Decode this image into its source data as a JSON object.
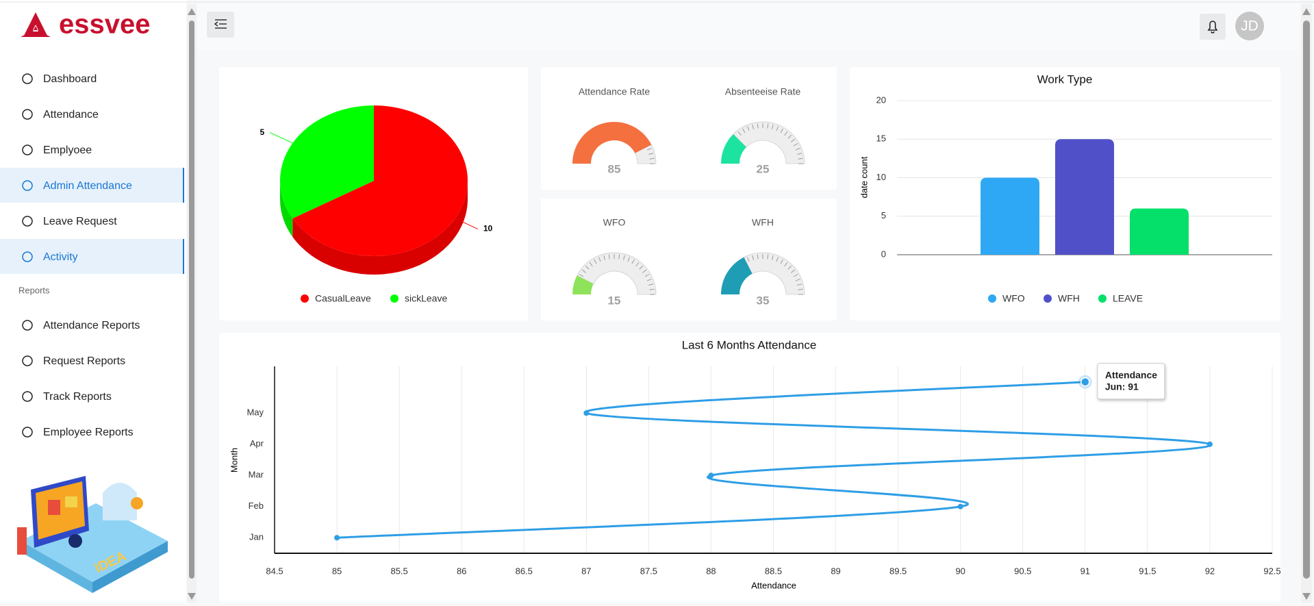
{
  "sidebar": {
    "logo": "essvee",
    "nav": [
      {
        "label": "Dashboard"
      },
      {
        "label": "Attendance"
      },
      {
        "label": "Emplyoee"
      },
      {
        "label": "Admin Attendance",
        "active": true
      },
      {
        "label": "Leave Request"
      },
      {
        "label": "Activity",
        "active": true
      }
    ],
    "section": "Reports",
    "reports": [
      {
        "label": "Attendance Reports"
      },
      {
        "label": "Request Reports"
      },
      {
        "label": "Track Reports"
      },
      {
        "label": "Employee Reports"
      }
    ]
  },
  "header": {
    "avatar": "JD"
  },
  "chart_data": [
    {
      "type": "pie",
      "categories": [
        "CasualLeave",
        "sickLeave"
      ],
      "values": [
        10,
        5
      ],
      "colors": [
        "#ff0000",
        "#00ff00"
      ],
      "legend": "bottom"
    },
    {
      "type": "gauge",
      "title": "Attendance Rate",
      "value": 85,
      "color": "#f4703f",
      "ylim": [
        0,
        100
      ]
    },
    {
      "type": "gauge",
      "title": "Absenteeise Rate",
      "value": 25,
      "color": "#1de3a0",
      "ylim": [
        0,
        100
      ]
    },
    {
      "type": "gauge",
      "title": "WFO",
      "value": 15,
      "color": "#8ee35a",
      "ylim": [
        0,
        100
      ]
    },
    {
      "type": "gauge",
      "title": "WFH",
      "value": 35,
      "color": "#1f9db5",
      "ylim": [
        0,
        100
      ]
    },
    {
      "type": "bar",
      "title": "Work Type",
      "y_label": "date count",
      "categories": [
        "WFO",
        "WFH",
        "LEAVE"
      ],
      "values": [
        10,
        15,
        6
      ],
      "colors": [
        "#2ea8f5",
        "#5050c8",
        "#05e06a"
      ],
      "ylim": [
        0,
        20
      ],
      "yticks": [
        0,
        5,
        10,
        15,
        20
      ],
      "grid": true,
      "legend": "bottom"
    },
    {
      "type": "line",
      "orientation": "horizontal",
      "title": "Last 6 Months Attendance",
      "x_label": "Attendance",
      "y_label": "Month",
      "categories": [
        "Jan",
        "Feb",
        "Mar",
        "Apr",
        "May",
        null
      ],
      "series": [
        {
          "name": "Attendance",
          "color": "#2e9ee6",
          "values": [
            85,
            90,
            88,
            92,
            87,
            91
          ]
        }
      ],
      "xlim": [
        84.5,
        92.5
      ],
      "xticks": [
        84.5,
        85,
        85.5,
        86,
        86.5,
        87,
        87.5,
        88,
        88.5,
        89,
        89.5,
        90,
        90.5,
        91,
        91.5,
        92,
        92.5
      ],
      "grid": true,
      "tooltip": "Jun: 91"
    }
  ]
}
